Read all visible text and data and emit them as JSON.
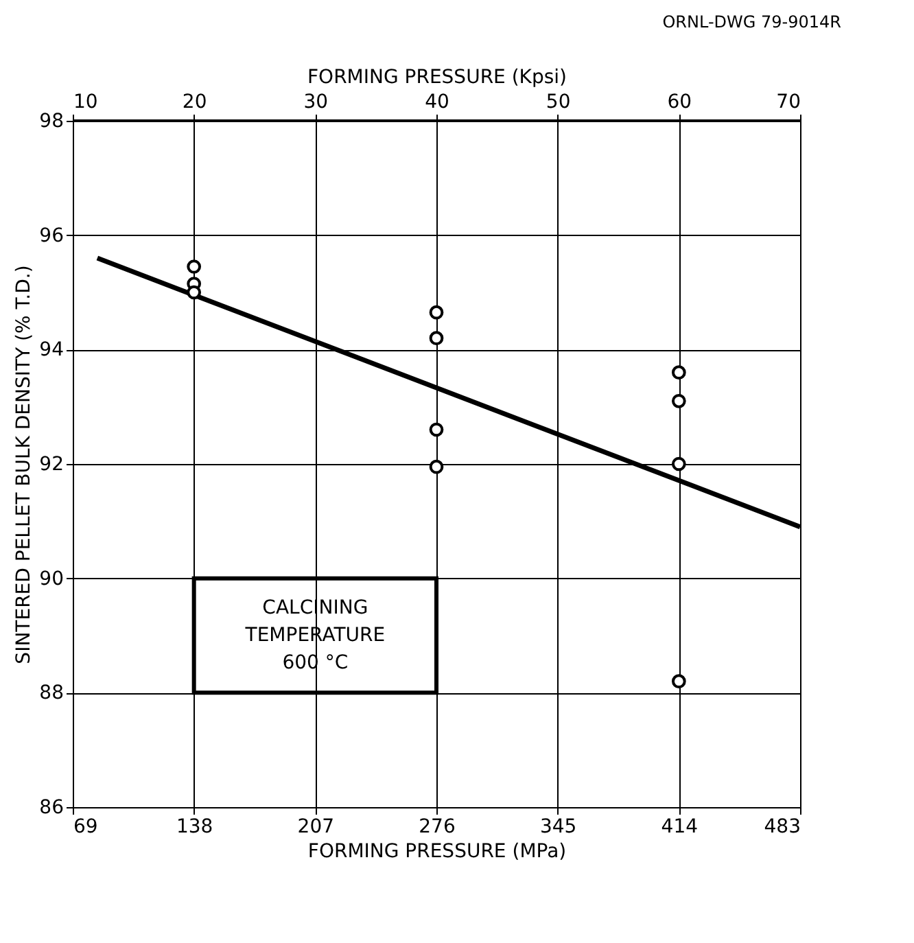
{
  "chart_data": {
    "type": "scatter",
    "xlabel": "FORMING PRESSURE (MPa)",
    "x2label": "FORMING PRESSURE (Kpsi)",
    "ylabel": "SINTERED PELLET BULK DENSITY (% T.D.)",
    "xlim": [
      69,
      483
    ],
    "xticks": [
      69,
      138,
      207,
      276,
      345,
      414,
      483
    ],
    "x2lim": [
      10,
      70
    ],
    "x2ticks": [
      10,
      20,
      30,
      40,
      50,
      60,
      70
    ],
    "ylim": [
      86,
      98
    ],
    "yticks": [
      86,
      88,
      90,
      92,
      94,
      96,
      98
    ],
    "grid": true,
    "marker": "circle",
    "annotations": [
      "ORNL-DWG 79-9014R",
      "CALCINING\nTEMPERATURE\n600 °C"
    ],
    "series": [
      {
        "color": "#000000",
        "x": [
          138,
          138,
          138,
          276,
          276,
          276,
          276,
          414,
          414,
          414,
          414
        ],
        "values": [
          95.45,
          95.15,
          95.0,
          94.65,
          94.2,
          92.6,
          91.95,
          93.6,
          93.1,
          92.0,
          88.2
        ]
      },
      {
        "type": "line",
        "color": "#000000",
        "marker": "none",
        "x": [
          83,
          483
        ],
        "values": [
          95.6,
          90.9
        ]
      }
    ]
  }
}
